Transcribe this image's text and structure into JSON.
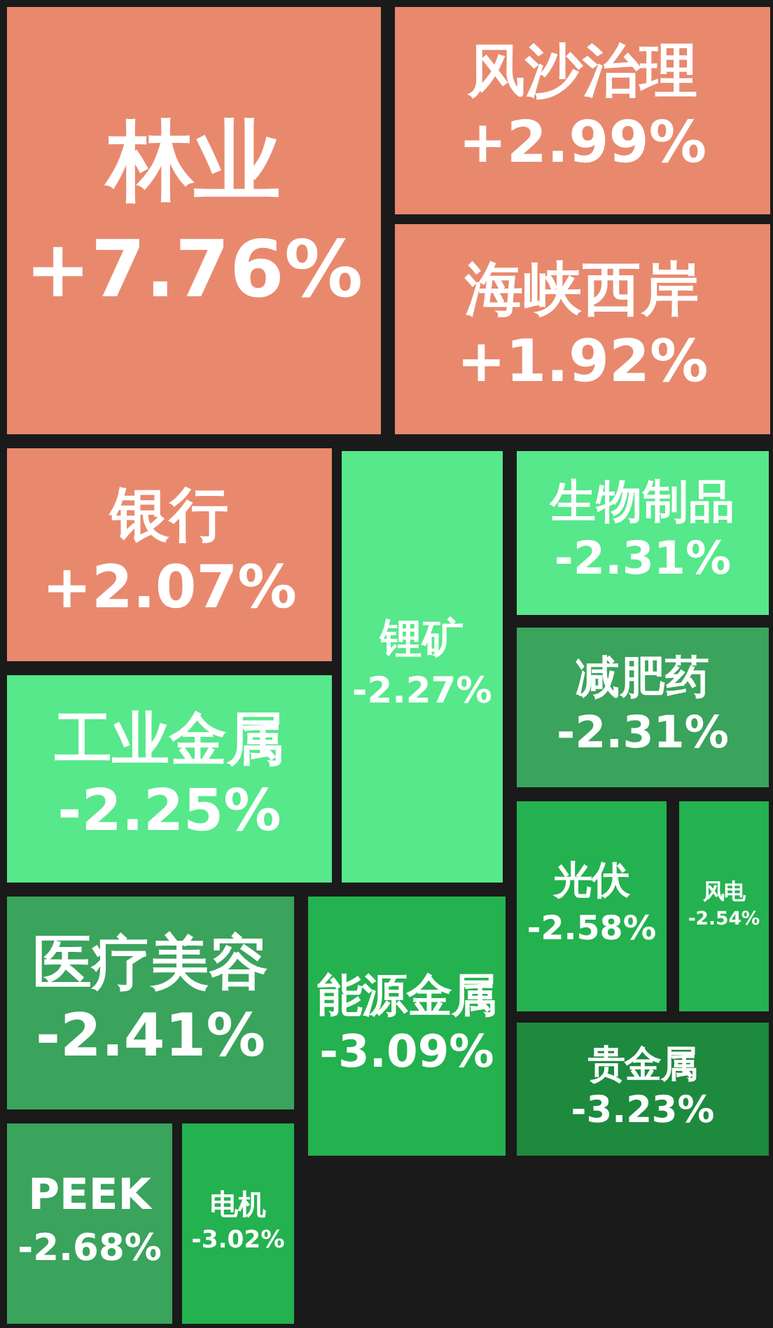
{
  "chart_data": {
    "type": "other",
    "categories": [
      "林业",
      "风沙治理",
      "海峡西岸",
      "银行",
      "锂矿",
      "生物制品",
      "减肥药",
      "工业金属",
      "光伏",
      "风电",
      "医疗美容",
      "能源金属",
      "贵金属",
      "PEEK",
      "电机"
    ],
    "values": [
      7.76,
      2.99,
      1.92,
      2.07,
      -2.27,
      -2.31,
      -2.31,
      -2.25,
      -2.58,
      -2.54,
      -2.41,
      -3.09,
      -3.23,
      -2.68,
      -3.02
    ],
    "value_labels": [
      "+7.76%",
      "+2.99%",
      "+1.92%",
      "+2.07%",
      "-2.27%",
      "-2.31%",
      "-2.31%",
      "-2.25%",
      "-2.58%",
      "-2.54%",
      "-2.41%",
      "-3.09%",
      "-3.23%",
      "-2.68%",
      "-3.02%"
    ],
    "colors": [
      "#e8896e",
      "#e8896e",
      "#e8896e",
      "#e8896e",
      "#56e88b",
      "#56e88b",
      "#3aa35c",
      "#56e88b",
      "#24b14f",
      "#24b14f",
      "#3aa35c",
      "#24b14f",
      "#1d8a3e",
      "#3aa35c",
      "#24b14f"
    ]
  }
}
